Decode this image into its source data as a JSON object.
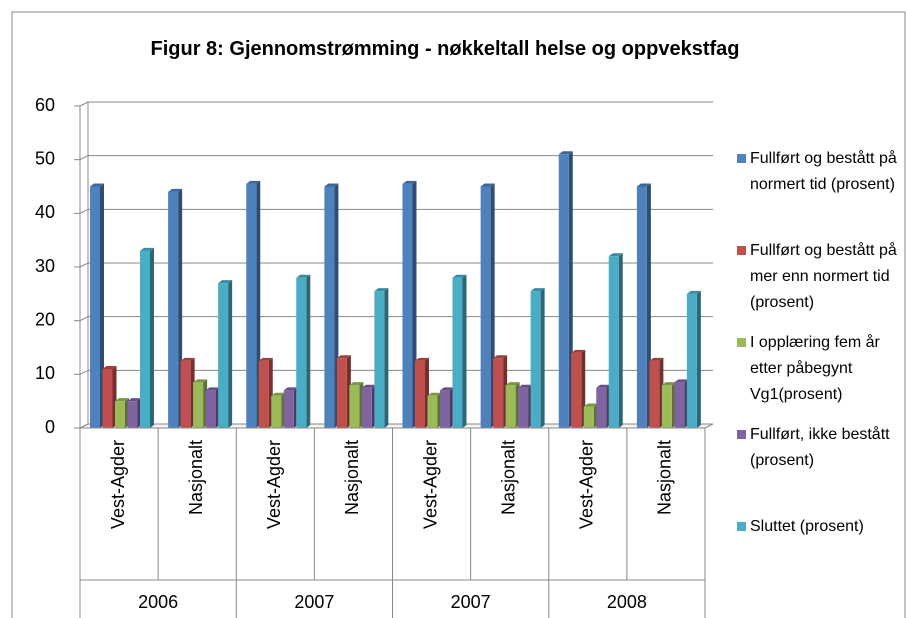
{
  "chart_data": {
    "type": "bar3d",
    "title": "Figur 8: Gjennomstrømming - nøkkeltall helse og oppvekstfag",
    "categories": [
      "Vest-Agder",
      "Nasjonalt",
      "Vest-Agder",
      "Nasjonalt",
      "Vest-Agder",
      "Nasjonalt",
      "Vest-Agder",
      "Nasjonalt"
    ],
    "category_groups": [
      "2006",
      "2007",
      "2007",
      "2008"
    ],
    "series": [
      {
        "name": "Fullført og bestått på normert tid (prosent)",
        "color": "#4f81bd",
        "values": [
          45,
          44,
          45.5,
          45,
          45.5,
          45,
          51,
          45
        ]
      },
      {
        "name": "Fullført og bestått på mer enn normert tid (prosent)",
        "color": "#c0504d",
        "values": [
          11,
          12.5,
          12.5,
          13,
          12.5,
          13,
          14,
          12.5
        ]
      },
      {
        "name": "I opplæring fem år etter påbegynt Vg1(prosent)",
        "color": "#9bbb59",
        "values": [
          5,
          8.5,
          6,
          8,
          6,
          8,
          4,
          8
        ]
      },
      {
        "name": "Fullført, ikke bestått (prosent)",
        "color": "#8064a2",
        "values": [
          5,
          7,
          7,
          7.5,
          7,
          7.5,
          7.5,
          8.5
        ]
      },
      {
        "name": "Sluttet (prosent)",
        "color": "#4bacc6",
        "values": [
          33,
          27,
          28,
          25.5,
          28,
          25.5,
          32,
          25
        ]
      }
    ],
    "ylim": [
      0,
      60
    ],
    "yticks": [
      0,
      10,
      20,
      30,
      40,
      50,
      60
    ],
    "grid": true,
    "legend": "right"
  }
}
